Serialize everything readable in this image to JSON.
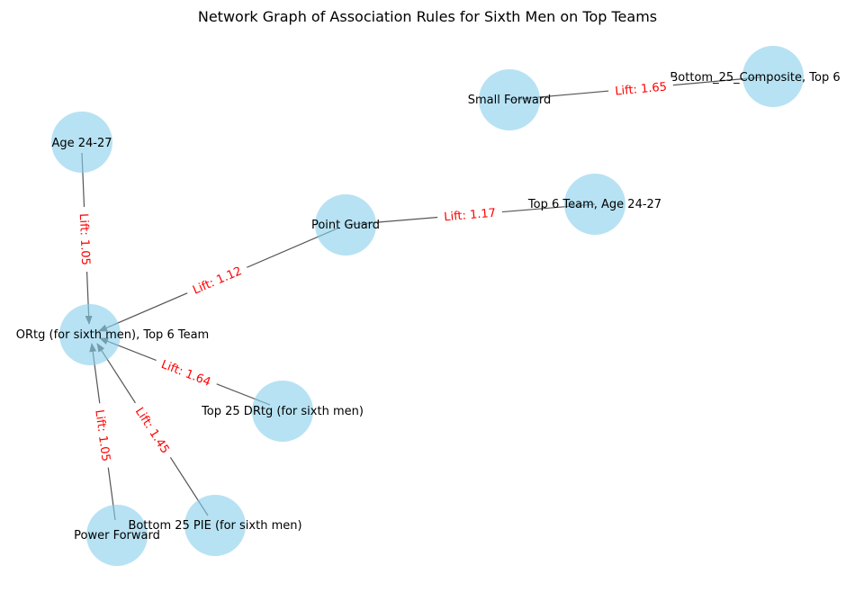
{
  "title": "Network Graph of Association Rules for Sixth Men on Top Teams",
  "colors": {
    "node_fill": "#87ceeb",
    "edge": "#555555",
    "edge_label": "#ff0000",
    "text": "#000000"
  },
  "nodes": [
    {
      "id": "small_forward",
      "label": "Small Forward"
    },
    {
      "id": "bottom25_composite",
      "label": "Bottom_25_Composite, Top 6"
    },
    {
      "id": "age_24_27",
      "label": "Age 24-27"
    },
    {
      "id": "point_guard",
      "label": "Point Guard"
    },
    {
      "id": "top6_age",
      "label": "Top 6 Team, Age 24-27"
    },
    {
      "id": "ortg_top6",
      "label": "ORtg (for sixth men), Top 6 Team"
    },
    {
      "id": "top25_drtg",
      "label": "Top 25 DRtg (for sixth men)"
    },
    {
      "id": "power_forward",
      "label": "Power Forward"
    },
    {
      "id": "bottom25_pie",
      "label": "Bottom 25 PIE (for sixth men)"
    }
  ],
  "edges": [
    {
      "source": "small_forward",
      "target": "bottom25_composite",
      "label": "Lift: 1.65",
      "directed": false
    },
    {
      "source": "point_guard",
      "target": "top6_age",
      "label": "Lift: 1.17",
      "directed": false
    },
    {
      "source": "age_24_27",
      "target": "ortg_top6",
      "label": "Lift: 1.05",
      "directed": true
    },
    {
      "source": "point_guard",
      "target": "ortg_top6",
      "label": "Lift: 1.12",
      "directed": true
    },
    {
      "source": "top25_drtg",
      "target": "ortg_top6",
      "label": "Lift: 1.64",
      "directed": true
    },
    {
      "source": "bottom25_pie",
      "target": "ortg_top6",
      "label": "Lift: 1.45",
      "directed": true
    },
    {
      "source": "power_forward",
      "target": "ortg_top6",
      "label": "Lift: 1.05",
      "directed": true
    }
  ]
}
